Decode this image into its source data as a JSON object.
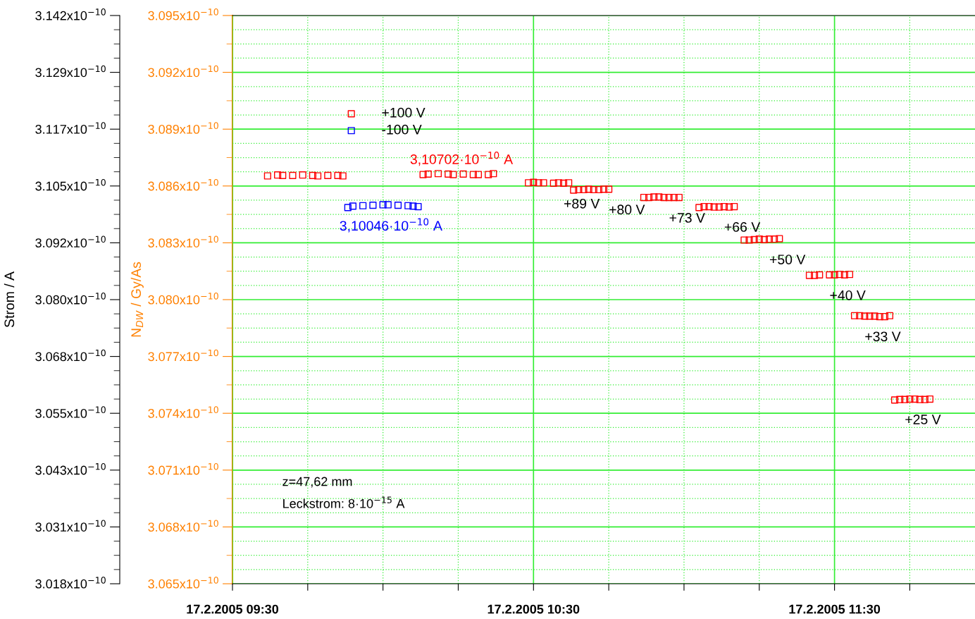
{
  "chart_data": {
    "type": "scatter",
    "ylabel": "Strom / A",
    "y2label": "N$_{DW}$ / Gy/As",
    "xlim": [
      "2005-02-17T09:30",
      "2005-02-17T11:58"
    ],
    "xticks": [
      {
        "value": "2005-02-17T09:30",
        "label": "17.2.2005 09:30"
      },
      {
        "value": "2005-02-17T09:45",
        "label": null
      },
      {
        "value": "2005-02-17T10:00",
        "label": null
      },
      {
        "value": "2005-02-17T10:15",
        "label": null
      },
      {
        "value": "2005-02-17T10:30",
        "label": "17.2.2005 10:30"
      },
      {
        "value": "2005-02-17T10:45",
        "label": null
      },
      {
        "value": "2005-02-17T11:00",
        "label": null
      },
      {
        "value": "2005-02-17T11:15",
        "label": null
      },
      {
        "value": "2005-02-17T11:30",
        "label": "17.2.2005 11:30"
      },
      {
        "value": "2005-02-17T11:45",
        "label": null
      }
    ],
    "ylim": [
      3.018e-10,
      3.142e-10
    ],
    "yticks": [
      {
        "value": 3.018e-10,
        "label": "3.018x10$^{−10}$"
      },
      {
        "value": 3.0304e-10,
        "label": "3.031x10$^{−10}$"
      },
      {
        "value": 3.0428e-10,
        "label": "3.043x10$^{−10}$"
      },
      {
        "value": 3.0552e-10,
        "label": "3.055x10$^{−10}$"
      },
      {
        "value": 3.0676e-10,
        "label": "3.068x10$^{−10}$"
      },
      {
        "value": 3.08e-10,
        "label": "3.080x10$^{−10}$"
      },
      {
        "value": 3.0924e-10,
        "label": "3.092x10$^{−10}$"
      },
      {
        "value": 3.1048e-10,
        "label": "3.105x10$^{−10}$"
      },
      {
        "value": 3.1172e-10,
        "label": "3.117x10$^{−10}$"
      },
      {
        "value": 3.1296e-10,
        "label": "3.129x10$^{−10}$"
      },
      {
        "value": 3.142e-10,
        "label": "3.142x10$^{−10}$"
      }
    ],
    "y2lim": [
      3.065e-10,
      3.095e-10
    ],
    "y2ticks": [
      {
        "value": 3.065e-10,
        "label": "3.065x10$^{−10}$"
      },
      {
        "value": 3.068e-10,
        "label": "3.068x10$^{−10}$"
      },
      {
        "value": 3.071e-10,
        "label": "3.071x10$^{−10}$"
      },
      {
        "value": 3.074e-10,
        "label": "3.074x10$^{−10}$"
      },
      {
        "value": 3.077e-10,
        "label": "3.077x10$^{−10}$"
      },
      {
        "value": 3.08e-10,
        "label": "3.080x10$^{−10}$"
      },
      {
        "value": 3.083e-10,
        "label": "3.083x10$^{−10}$"
      },
      {
        "value": 3.086e-10,
        "label": "3.086x10$^{−10}$"
      },
      {
        "value": 3.089e-10,
        "label": "3.089x10$^{−10}$"
      },
      {
        "value": 3.092e-10,
        "label": "3.092x10$^{−10}$"
      },
      {
        "value": 3.095e-10,
        "label": "3.095x10$^{−10}$"
      }
    ],
    "grid": true,
    "legend": "top left",
    "marker": "square",
    "series": [
      {
        "name": "+100 V",
        "color": "#ff0000",
        "x": [
          "2005-02-17T09:37",
          "2005-02-17T09:39",
          "2005-02-17T09:40",
          "2005-02-17T09:42",
          "2005-02-17T09:44",
          "2005-02-17T09:46",
          "2005-02-17T09:47",
          "2005-02-17T09:49",
          "2005-02-17T09:51",
          "2005-02-17T09:52",
          "2005-02-17T10:08",
          "2005-02-17T10:09",
          "2005-02-17T10:11",
          "2005-02-17T10:13",
          "2005-02-17T10:14",
          "2005-02-17T10:16",
          "2005-02-17T10:18",
          "2005-02-17T10:19",
          "2005-02-17T10:21",
          "2005-02-17T10:22",
          "2005-02-17T10:29",
          "2005-02-17T10:30",
          "2005-02-17T10:31",
          "2005-02-17T10:32",
          "2005-02-17T10:34",
          "2005-02-17T10:35",
          "2005-02-17T10:36",
          "2005-02-17T10:37",
          "2005-02-17T10:38",
          "2005-02-17T10:39",
          "2005-02-17T10:40",
          "2005-02-17T10:41",
          "2005-02-17T10:42",
          "2005-02-17T10:43",
          "2005-02-17T10:44",
          "2005-02-17T10:45",
          "2005-02-17T10:52",
          "2005-02-17T10:53",
          "2005-02-17T10:54",
          "2005-02-17T10:55",
          "2005-02-17T10:56",
          "2005-02-17T10:57",
          "2005-02-17T10:58",
          "2005-02-17T10:59",
          "2005-02-17T11:03",
          "2005-02-17T11:04",
          "2005-02-17T11:05",
          "2005-02-17T11:06",
          "2005-02-17T11:07",
          "2005-02-17T11:08",
          "2005-02-17T11:09",
          "2005-02-17T11:10",
          "2005-02-17T11:12",
          "2005-02-17T11:13",
          "2005-02-17T11:14",
          "2005-02-17T11:15",
          "2005-02-17T11:16",
          "2005-02-17T11:17",
          "2005-02-17T11:18",
          "2005-02-17T11:19",
          "2005-02-17T11:25",
          "2005-02-17T11:26",
          "2005-02-17T11:27",
          "2005-02-17T11:29",
          "2005-02-17T11:30",
          "2005-02-17T11:31",
          "2005-02-17T11:32",
          "2005-02-17T11:33",
          "2005-02-17T11:34",
          "2005-02-17T11:35",
          "2005-02-17T11:36",
          "2005-02-17T11:37",
          "2005-02-17T11:38",
          "2005-02-17T11:39",
          "2005-02-17T11:40",
          "2005-02-17T11:41",
          "2005-02-17T11:42",
          "2005-02-17T11:43",
          "2005-02-17T11:44",
          "2005-02-17T11:45",
          "2005-02-17T11:46",
          "2005-02-17T11:47",
          "2005-02-17T11:48",
          "2005-02-17T11:49"
        ],
        "values": [
          3.107e-10,
          3.1072e-10,
          3.1071e-10,
          3.1071e-10,
          3.1072e-10,
          3.1071e-10,
          3.107e-10,
          3.1071e-10,
          3.1071e-10,
          3.107e-10,
          3.1073e-10,
          3.1074e-10,
          3.1075e-10,
          3.1074e-10,
          3.1073e-10,
          3.1074e-10,
          3.1073e-10,
          3.1073e-10,
          3.1073e-10,
          3.1075e-10,
          3.1055e-10,
          3.1056e-10,
          3.1055e-10,
          3.1055e-10,
          3.1054e-10,
          3.1055e-10,
          3.1054e-10,
          3.1055e-10,
          3.1039e-10,
          3.104e-10,
          3.104e-10,
          3.1041e-10,
          3.104e-10,
          3.104e-10,
          3.1041e-10,
          3.1041e-10,
          3.1023e-10,
          3.1023e-10,
          3.1024e-10,
          3.1024e-10,
          3.1023e-10,
          3.1023e-10,
          3.1023e-10,
          3.1023e-10,
          3.1001e-10,
          3.1003e-10,
          3.1003e-10,
          3.1002e-10,
          3.1002e-10,
          3.1003e-10,
          3.1002e-10,
          3.1003e-10,
          3.093e-10,
          3.093e-10,
          3.0931e-10,
          3.0932e-10,
          3.0931e-10,
          3.0932e-10,
          3.0932e-10,
          3.0933e-10,
          3.0853e-10,
          3.0853e-10,
          3.0854e-10,
          3.0854e-10,
          3.0854e-10,
          3.0855e-10,
          3.0854e-10,
          3.0855e-10,
          3.0765e-10,
          3.0765e-10,
          3.0764e-10,
          3.0764e-10,
          3.0764e-10,
          3.0763e-10,
          3.0763e-10,
          3.0765e-10,
          3.0581e-10,
          3.0582e-10,
          3.0582e-10,
          3.0583e-10,
          3.0583e-10,
          3.0582e-10,
          3.0582e-10,
          3.0583e-10
        ]
      },
      {
        "name": "-100 V",
        "color": "#0000ff",
        "x": [
          "2005-02-17T09:53",
          "2005-02-17T09:54",
          "2005-02-17T09:56",
          "2005-02-17T09:58",
          "2005-02-17T10:00",
          "2005-02-17T10:01",
          "2005-02-17T10:03",
          "2005-02-17T10:05",
          "2005-02-17T10:06",
          "2005-02-17T10:07"
        ],
        "values": [
          3.1001e-10,
          3.1004e-10,
          3.1005e-10,
          3.1006e-10,
          3.1007e-10,
          3.1007e-10,
          3.1006e-10,
          3.1005e-10,
          3.1004e-10,
          3.1003e-10
        ]
      }
    ],
    "annotations": [
      "3,10702·10$^{−10}$ A",
      "3,10046·10$^{−10}$ A",
      "z=47,62 mm",
      "Leckstrom: 8·10$^{−15}$ A",
      {
        "text": "+89 V",
        "x": "2005-02-17T10:36",
        "y": 3.1054e-10
      },
      {
        "text": "+80 V",
        "x": "2005-02-17T10:45",
        "y": 3.1041e-10
      },
      {
        "text": "+73 V",
        "x": "2005-02-17T10:57",
        "y": 3.1023e-10
      },
      {
        "text": "+66 V",
        "x": "2005-02-17T11:08",
        "y": 3.1003e-10
      },
      {
        "text": "+50 V",
        "x": "2005-02-17T11:17",
        "y": 3.0932e-10
      },
      {
        "text": "+40 V",
        "x": "2005-02-17T11:29",
        "y": 3.0854e-10
      },
      {
        "text": "+33 V",
        "x": "2005-02-17T11:36",
        "y": 3.0764e-10
      },
      {
        "text": "+25 V",
        "x": "2005-02-17T11:44",
        "y": 3.0583e-10
      }
    ]
  }
}
